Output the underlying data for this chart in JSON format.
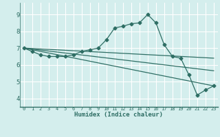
{
  "xlabel": "Humidex (Indice chaleur)",
  "bg_color": "#d4eeed",
  "grid_color": "#ffffff",
  "line_color": "#2e6e64",
  "axis_color": "#2e6e64",
  "xlim": [
    -0.5,
    23.5
  ],
  "ylim": [
    3.5,
    9.7
  ],
  "xticks": [
    0,
    1,
    2,
    3,
    4,
    5,
    6,
    7,
    8,
    9,
    10,
    11,
    12,
    13,
    14,
    15,
    16,
    17,
    18,
    19,
    20,
    21,
    22,
    23
  ],
  "yticks": [
    4,
    5,
    6,
    7,
    8,
    9
  ],
  "series": [
    {
      "x": [
        0,
        1,
        2,
        3,
        4,
        5,
        6,
        7,
        8,
        9,
        10,
        11,
        12,
        13,
        14,
        15,
        16,
        17,
        18,
        19,
        20,
        21,
        22,
        23
      ],
      "y": [
        7.0,
        6.8,
        6.6,
        6.5,
        6.5,
        6.5,
        6.6,
        6.8,
        6.9,
        7.0,
        7.5,
        8.2,
        8.3,
        8.45,
        8.5,
        9.0,
        8.5,
        7.2,
        6.5,
        6.4,
        5.4,
        4.2,
        4.5,
        4.75
      ],
      "marker": "D",
      "markersize": 2.5
    },
    {
      "x": [
        0,
        23
      ],
      "y": [
        7.0,
        6.4
      ],
      "marker": null
    },
    {
      "x": [
        0,
        23
      ],
      "y": [
        7.0,
        5.65
      ],
      "marker": null
    },
    {
      "x": [
        0,
        23
      ],
      "y": [
        7.0,
        4.75
      ],
      "marker": null
    }
  ]
}
